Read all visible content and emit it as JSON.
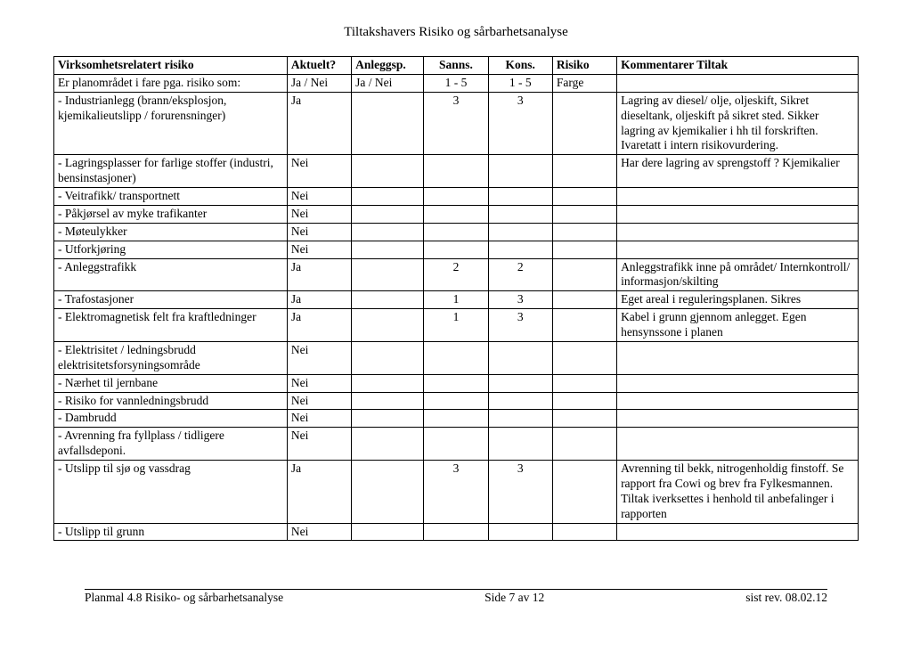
{
  "document": {
    "title": "Tiltakshavers Risiko og sårbarhetsanalyse",
    "background_color": "#ffffff",
    "text_color": "#000000",
    "font_family": "Times New Roman"
  },
  "table": {
    "columns": [
      {
        "key": "desc",
        "label": "Virksomhetsrelatert risiko",
        "bold": true
      },
      {
        "key": "akt",
        "label": "Aktuelt?",
        "bold": true
      },
      {
        "key": "anl",
        "label": "Anleggsp.",
        "bold": true
      },
      {
        "key": "sanns",
        "label": "Sanns.",
        "bold": true,
        "align": "center"
      },
      {
        "key": "kons",
        "label": "Kons.",
        "bold": true,
        "align": "center"
      },
      {
        "key": "risiko",
        "label": "Risiko",
        "bold": true
      },
      {
        "key": "komm",
        "label": "Kommentarer Tiltak",
        "bold": true
      }
    ],
    "rows": [
      {
        "desc": "Er planområdet i fare pga. risiko som:",
        "akt": "Ja / Nei",
        "anl": "Ja / Nei",
        "sanns": "1  - 5",
        "kons": "1 - 5",
        "risiko": "Farge",
        "komm": ""
      },
      {
        "desc": "- Industrianlegg (brann/eksplosjon, kjemikalieutslipp / forurensninger)",
        "akt": "Ja",
        "anl": "",
        "sanns": "3",
        "kons": "3",
        "risiko": "",
        "komm": "Lagring av diesel/ olje, oljeskift, Sikret dieseltank, oljeskift på sikret sted. Sikker lagring av kjemikalier i hh til forskriften. Ivaretatt i intern risikovurdering."
      },
      {
        "desc": "- Lagringsplasser for farlige stoffer (industri, bensinstasjoner)",
        "akt": "Nei",
        "anl": "",
        "sanns": "",
        "kons": "",
        "risiko": "",
        "komm": "Har dere lagring av sprengstoff ? Kjemikalier"
      },
      {
        "desc": "- Veitrafikk/ transportnett",
        "akt": "Nei",
        "anl": "",
        "sanns": "",
        "kons": "",
        "risiko": "",
        "komm": ""
      },
      {
        "desc": "- Påkjørsel av myke trafikanter",
        "akt": "Nei",
        "anl": "",
        "sanns": "",
        "kons": "",
        "risiko": "",
        "komm": ""
      },
      {
        "desc": "- Møteulykker",
        "akt": "Nei",
        "anl": "",
        "sanns": "",
        "kons": "",
        "risiko": "",
        "komm": ""
      },
      {
        "desc": "- Utforkjøring",
        "akt": "Nei",
        "anl": "",
        "sanns": "",
        "kons": "",
        "risiko": "",
        "komm": ""
      },
      {
        "desc": "- Anleggstrafikk",
        "akt": "Ja",
        "anl": "",
        "sanns": "2",
        "kons": "2",
        "risiko": "",
        "komm": "Anleggstrafikk inne på området/ Internkontroll/ informasjon/skilting"
      },
      {
        "desc": "- Trafostasjoner",
        "akt": "Ja",
        "anl": "",
        "sanns": "1",
        "kons": "3",
        "risiko": "",
        "komm": "Eget areal i reguleringsplanen. Sikres"
      },
      {
        "desc": "- Elektromagnetisk felt fra kraftledninger",
        "akt": "Ja",
        "anl": "",
        "sanns": "1",
        "kons": "3",
        "risiko": "",
        "komm": "Kabel i grunn gjennom anlegget. Egen hensynssone i planen"
      },
      {
        "desc": "- Elektrisitet / ledningsbrudd elektrisitetsforsyningsområde",
        "akt": "Nei",
        "anl": "",
        "sanns": "",
        "kons": "",
        "risiko": "",
        "komm": ""
      },
      {
        "desc": "- Nærhet til jernbane",
        "akt": "Nei",
        "anl": "",
        "sanns": "",
        "kons": "",
        "risiko": "",
        "komm": ""
      },
      {
        "desc": "- Risiko for vannledningsbrudd",
        "akt": "Nei",
        "anl": "",
        "sanns": "",
        "kons": "",
        "risiko": "",
        "komm": ""
      },
      {
        "desc": "- Dambrudd",
        "akt": "Nei",
        "anl": "",
        "sanns": "",
        "kons": "",
        "risiko": "",
        "komm": ""
      },
      {
        "desc": "- Avrenning fra fyllplass / tidligere avfallsdeponi.",
        "akt": "Nei",
        "anl": "",
        "sanns": "",
        "kons": "",
        "risiko": "",
        "komm": ""
      },
      {
        "desc": "- Utslipp til sjø og vassdrag",
        "akt": "Ja",
        "anl": "",
        "sanns": "3",
        "kons": "3",
        "risiko": "",
        "komm": "Avrenning til bekk, nitrogenholdig finstoff. Se rapport fra Cowi og brev fra Fylkesmannen. Tiltak iverksettes i henhold til anbefalinger i rapporten"
      },
      {
        "desc": "- Utslipp til grunn",
        "akt": "Nei",
        "anl": "",
        "sanns": "",
        "kons": "",
        "risiko": "",
        "komm": ""
      }
    ]
  },
  "footer": {
    "left": "Planmal 4.8 Risiko- og sårbarhetsanalyse",
    "center": "Side 7 av 12",
    "right": "sist rev. 08.02.12"
  }
}
